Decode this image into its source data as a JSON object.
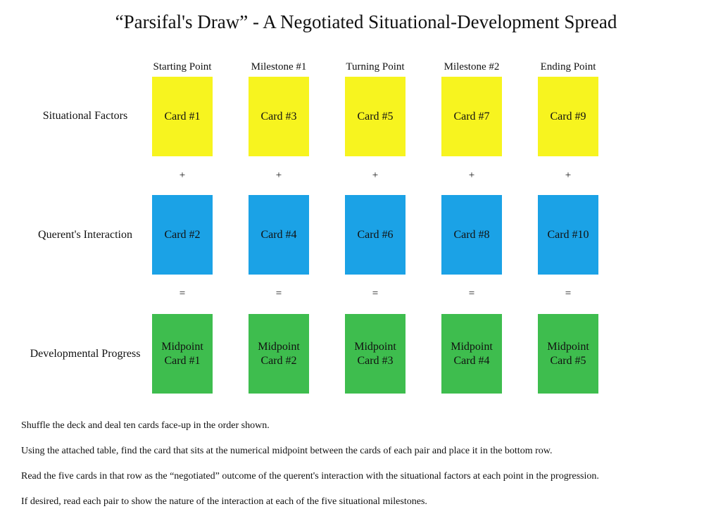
{
  "title": "“Parsifal's Draw” - A Negotiated Situational-Development Spread",
  "columns": [
    "Starting Point",
    "Milestone #1",
    "Turning Point",
    "Milestone #2",
    "Ending Point"
  ],
  "rows": {
    "situational": {
      "label": "Situational Factors",
      "color": "#f7f41f",
      "cards": [
        "Card #1",
        "Card #3",
        "Card #5",
        "Card #7",
        "Card #9"
      ]
    },
    "interaction": {
      "label": "Querent's Interaction",
      "color": "#1ba2e6",
      "cards": [
        "Card #2",
        "Card #4",
        "Card #6",
        "Card #8",
        "Card #10"
      ]
    },
    "progress": {
      "label": "Developmental Progress",
      "color": "#3ebd4e",
      "cards": [
        {
          "line1": "Midpoint",
          "line2": "Card #1"
        },
        {
          "line1": "Midpoint",
          "line2": "Card #2"
        },
        {
          "line1": "Midpoint",
          "line2": "Card #3"
        },
        {
          "line1": "Midpoint",
          "line2": "Card #4"
        },
        {
          "line1": "Midpoint",
          "line2": "Card #5"
        }
      ]
    }
  },
  "operators": {
    "plus": "+",
    "equals": "="
  },
  "instructions": [
    "Shuffle the deck and deal ten cards face-up in the order shown.",
    "Using the attached table, find the card that sits at the numerical midpoint between the cards of each pair and place it in the bottom row.",
    "Read the five cards in that row as the “negotiated” outcome of the querent's interaction with the situational factors at each point in the progression.",
    "If desired, read each pair to show the nature of the interaction at each of the five situational milestones."
  ]
}
